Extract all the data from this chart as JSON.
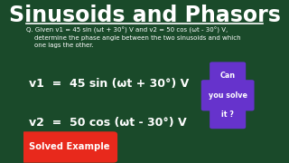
{
  "title": "Sinusoids and Phasors",
  "bg_color": "#1a4a2a",
  "title_color": "#ffffff",
  "title_fontsize": 17,
  "question_text": "Q. Given v1 = 45 sin (ωt + 30°) V and v2 = 50 cos (ωt - 30°) V,\n    determine the phase angle between the two sinusoids and which\n    one lags the other.",
  "eq1": "v1  =  45 sin (ωt + 30°) V",
  "eq2": "v2  =  50 cos (ωt - 30°) V",
  "can_solve_lines": [
    "Can",
    "you solve",
    "it ?"
  ],
  "badge_text": "Solved Example",
  "badge_bg": "#e8291c",
  "badge_text_color": "#ffffff",
  "can_solve_bg": "#6633cc",
  "can_solve_text_color": "#ffffff",
  "eq_color": "#ffffff",
  "question_color": "#ffffff",
  "underline_color": "#ffffff"
}
